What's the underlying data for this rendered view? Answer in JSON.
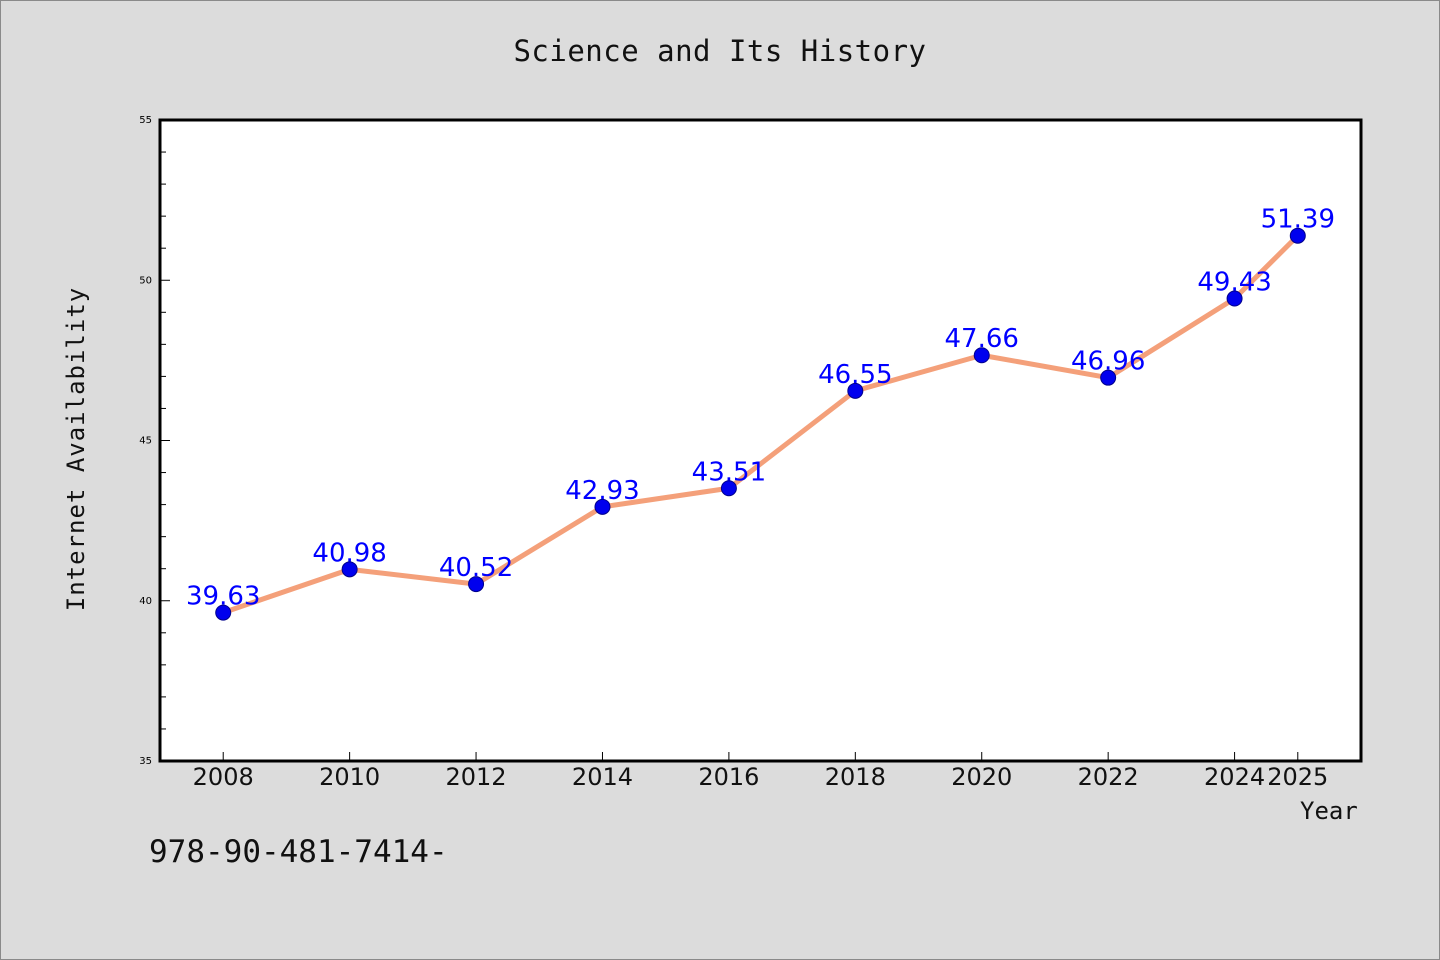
{
  "header": {
    "title": "Science and Its History"
  },
  "footer": {
    "text": "978-90-481-7414-"
  },
  "chart_data": {
    "type": "line",
    "title": "Science and Its History",
    "xlabel": "Year",
    "ylabel": "Internet Availability",
    "x": [
      "2008",
      "2010",
      "2012",
      "2014",
      "2016",
      "2018",
      "2020",
      "2022",
      "2024",
      "2025"
    ],
    "series": [
      {
        "values": [
          39.63,
          40.98,
          40.52,
          42.93,
          43.51,
          46.55,
          47.66,
          46.96,
          49.43,
          51.39
        ],
        "labels": [
          "39.63",
          "40.98",
          "40.52",
          "42.93",
          "43.51",
          "46.55",
          "47.66",
          "46.96",
          "49.43",
          "51.39"
        ],
        "line_color": "#f4a07a",
        "marker_color": "#0000ee",
        "label_color": "#0000ff"
      }
    ],
    "ylim": [
      35,
      55
    ],
    "yticks": [
      "35",
      "40",
      "45",
      "50",
      "55"
    ],
    "grid": false,
    "legend": "none",
    "background": "#ffffff",
    "figure_background": "#dcdcdc"
  }
}
